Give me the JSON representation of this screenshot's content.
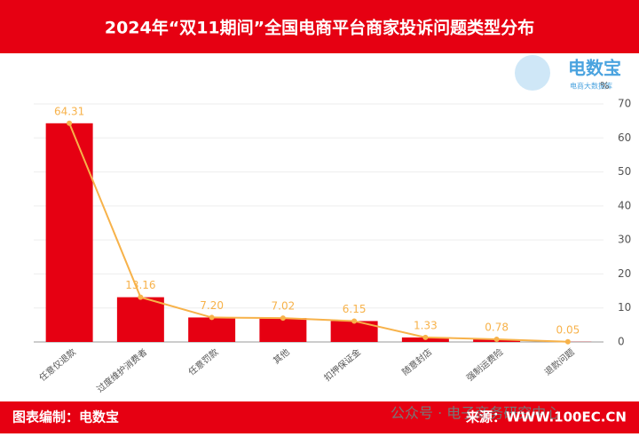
{
  "chart_data": {
    "type": "bar",
    "title": "2024年“双11期间”全国电商平台商家投诉问题类型分布",
    "categories": [
      "任意仅退款",
      "过度维护消费者",
      "任意罚款",
      "其他",
      "扣押保证金",
      "随意封店",
      "强制运费险",
      "退款问题"
    ],
    "values": [
      64.31,
      13.16,
      7.2,
      7.02,
      6.15,
      1.33,
      0.78,
      0.05
    ],
    "value_labels": [
      "64.31",
      "13.16",
      "7.20",
      "7.02",
      "6.15",
      "1.33",
      "0.78",
      "0.05"
    ],
    "bar_color": "#e60012",
    "line_color": "#f7b24a",
    "ylim": [
      0,
      70
    ],
    "yticks": [
      0,
      10,
      20,
      30,
      40,
      50,
      60,
      70
    ],
    "y_unit": "%",
    "grid": true,
    "logo": {
      "name": "电数宝",
      "sub": "电商大数据库"
    },
    "footer": {
      "left": "图表编制：电数宝",
      "watermark": "公众号 · 电子商务研究中心",
      "right": "来源：WWW.100EC.CN"
    }
  }
}
